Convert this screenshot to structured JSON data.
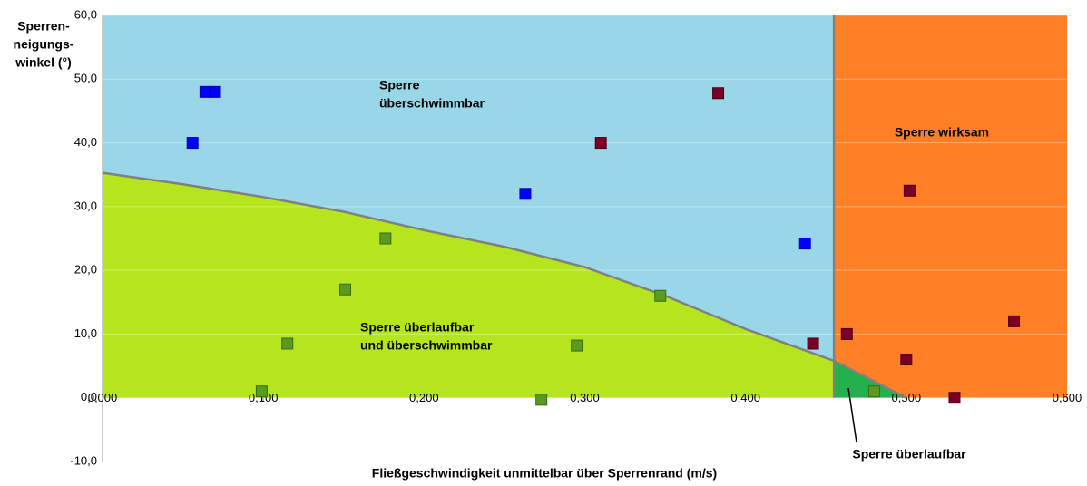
{
  "chart_data": {
    "type": "scatter",
    "x_label": "Fließgeschwindigkeit unmittelbar über Sperrenrand (m/s)",
    "y_label": [
      "Sperren-",
      "neigungs-",
      "winkel (°)"
    ],
    "xlim": [
      0,
      0.6
    ],
    "ylim": [
      -10,
      60
    ],
    "xticks": [
      {
        "value": 0,
        "label": "0,000"
      },
      {
        "value": 0.1,
        "label": "0,100"
      },
      {
        "value": 0.2,
        "label": "0,200"
      },
      {
        "value": 0.3,
        "label": "0,300"
      },
      {
        "value": 0.4,
        "label": "0,400"
      },
      {
        "value": 0.5,
        "label": "0,500"
      },
      {
        "value": 0.6,
        "label": "0,600"
      }
    ],
    "yticks": [
      {
        "value": -10,
        "label": "-10,0"
      },
      {
        "value": 0,
        "label": "0,0"
      },
      {
        "value": 10,
        "label": "10,0"
      },
      {
        "value": 20,
        "label": "20,0"
      },
      {
        "value": 30,
        "label": "30,0"
      },
      {
        "value": 40,
        "label": "40,0"
      },
      {
        "value": 50,
        "label": "50,0"
      },
      {
        "value": 60,
        "label": "60,0"
      }
    ],
    "grid": true,
    "boundary": {
      "x": [
        0,
        0.05,
        0.1,
        0.15,
        0.2,
        0.25,
        0.3,
        0.35,
        0.4,
        0.455,
        0.5
      ],
      "y": [
        35.3,
        33.5,
        31.5,
        29.2,
        26.3,
        23.7,
        20.5,
        16,
        10.8,
        5.8,
        0
      ],
      "color": "#808080"
    },
    "divider_x": 0.455,
    "region_colors": {
      "upper": "#98d6e8",
      "right": "#ff7f27",
      "lower": "#b5e61d",
      "corner": "#22b14c"
    },
    "annotations": [
      {
        "lines": [
          "Sperre",
          "überschwimmbar"
        ]
      },
      {
        "lines": [
          "Sperre wirksam"
        ]
      },
      {
        "lines": [
          "Sperre überlaufbar",
          "und überschwimmbar"
        ]
      },
      {
        "lines": [
          "Sperre überlaufbar"
        ]
      }
    ],
    "series": [
      {
        "color": "#0000ff",
        "border": "#0000aa",
        "x": [
          0.064,
          0.07,
          0.056,
          0.263,
          0.437
        ],
        "values": [
          48,
          48,
          40,
          32,
          24.2
        ]
      },
      {
        "color": "#7a0026",
        "border": "#4a0016",
        "x": [
          0.383,
          0.31,
          0.442,
          0.463,
          0.502,
          0.5,
          0.53,
          0.567
        ],
        "values": [
          47.8,
          40,
          8.5,
          10,
          32.5,
          6,
          0,
          12
        ]
      },
      {
        "color": "#5a9a1f",
        "border": "#3a6a10",
        "x": [
          0.176,
          0.151,
          0.115,
          0.099,
          0.273,
          0.295,
          0.347,
          0.48
        ],
        "values": [
          25,
          17,
          8.5,
          1,
          -0.3,
          8.2,
          16,
          1
        ]
      }
    ]
  }
}
